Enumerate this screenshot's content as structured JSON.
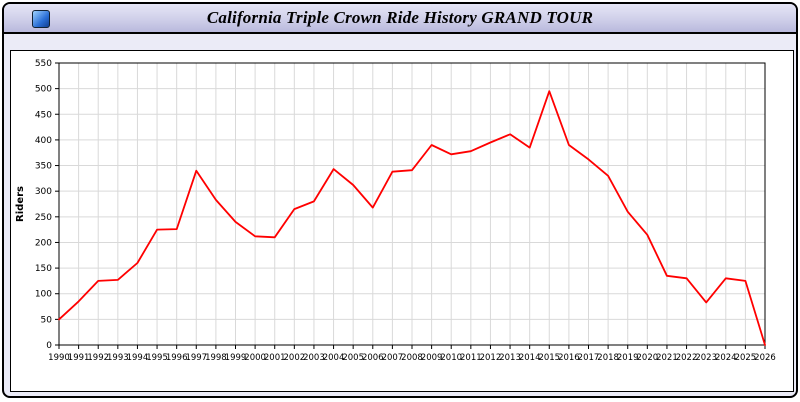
{
  "window": {
    "title": "California Triple Crown Ride History GRAND TOUR"
  },
  "chart_data": {
    "type": "line",
    "title": "California Triple Crown Ride History GRAND TOUR",
    "xlabel": "",
    "ylabel": "Riders",
    "x": [
      1990,
      1991,
      1992,
      1993,
      1994,
      1995,
      1996,
      1997,
      1998,
      1999,
      2000,
      2001,
      2002,
      2003,
      2004,
      2005,
      2006,
      2007,
      2008,
      2009,
      2010,
      2011,
      2012,
      2013,
      2014,
      2015,
      2016,
      2017,
      2018,
      2019,
      2020,
      2021,
      2022,
      2023,
      2024,
      2025,
      2026
    ],
    "values": [
      50,
      85,
      125,
      127,
      160,
      225,
      226,
      340,
      283,
      240,
      212,
      210,
      265,
      280,
      343,
      312,
      268,
      338,
      341,
      390,
      372,
      378,
      395,
      411,
      385,
      495,
      390,
      362,
      330,
      260,
      215,
      135,
      130,
      83,
      130,
      125,
      0
    ],
    "ylim": [
      0,
      550
    ],
    "ytick_step": 50,
    "grid": true,
    "legend": "none",
    "line_color": "#ff0000",
    "grid_color": "#d9d9d9"
  }
}
